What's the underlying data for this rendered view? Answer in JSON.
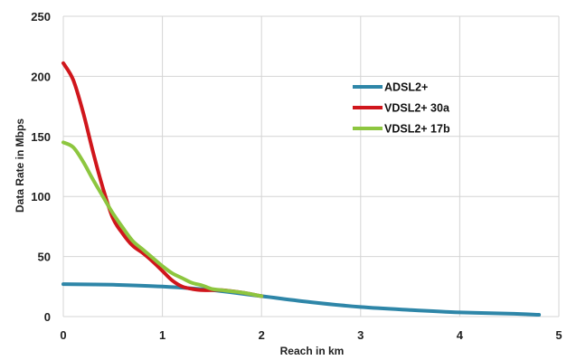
{
  "chart_data": {
    "type": "line",
    "title": "",
    "xlabel": "Reach in km",
    "ylabel": "Data Rate in Mbps",
    "xlim": [
      0,
      5
    ],
    "ylim": [
      0,
      250
    ],
    "x_ticks": [
      "0",
      "1",
      "2",
      "3",
      "4",
      "5"
    ],
    "y_ticks": [
      "0",
      "50",
      "100",
      "150",
      "200",
      "250"
    ],
    "grid": true,
    "legend_position": "upper-right-center",
    "series": [
      {
        "name": "ADSL2+",
        "color": "#2E86A8",
        "x": [
          0,
          0.5,
          1.0,
          1.5,
          2.0,
          2.5,
          3.0,
          3.5,
          4.0,
          4.5,
          4.8
        ],
        "y": [
          27,
          26.5,
          25,
          22,
          17,
          12,
          8,
          5.5,
          3.5,
          2.5,
          1.5
        ]
      },
      {
        "name": "VDSL2+ 30a",
        "color": "#D0161C",
        "x": [
          0,
          0.1,
          0.2,
          0.3,
          0.4,
          0.5,
          0.6,
          0.7,
          0.8,
          0.9,
          1.0,
          1.1,
          1.2,
          1.3,
          1.4,
          1.5,
          1.6,
          1.8,
          2.0
        ],
        "y": [
          211,
          197,
          170,
          137,
          107,
          82,
          69,
          59,
          53,
          46,
          38,
          30,
          25,
          23,
          22,
          22,
          22,
          20,
          17
        ]
      },
      {
        "name": "VDSL2+ 17b",
        "color": "#8DC63F",
        "x": [
          0,
          0.1,
          0.2,
          0.3,
          0.4,
          0.5,
          0.6,
          0.7,
          0.8,
          0.9,
          1.0,
          1.1,
          1.2,
          1.3,
          1.4,
          1.5,
          1.6,
          1.8,
          2.0
        ],
        "y": [
          145,
          141,
          129,
          114,
          100,
          86,
          74,
          63,
          56,
          49,
          42,
          36,
          32,
          28,
          26,
          23,
          22,
          20,
          17
        ]
      }
    ]
  }
}
